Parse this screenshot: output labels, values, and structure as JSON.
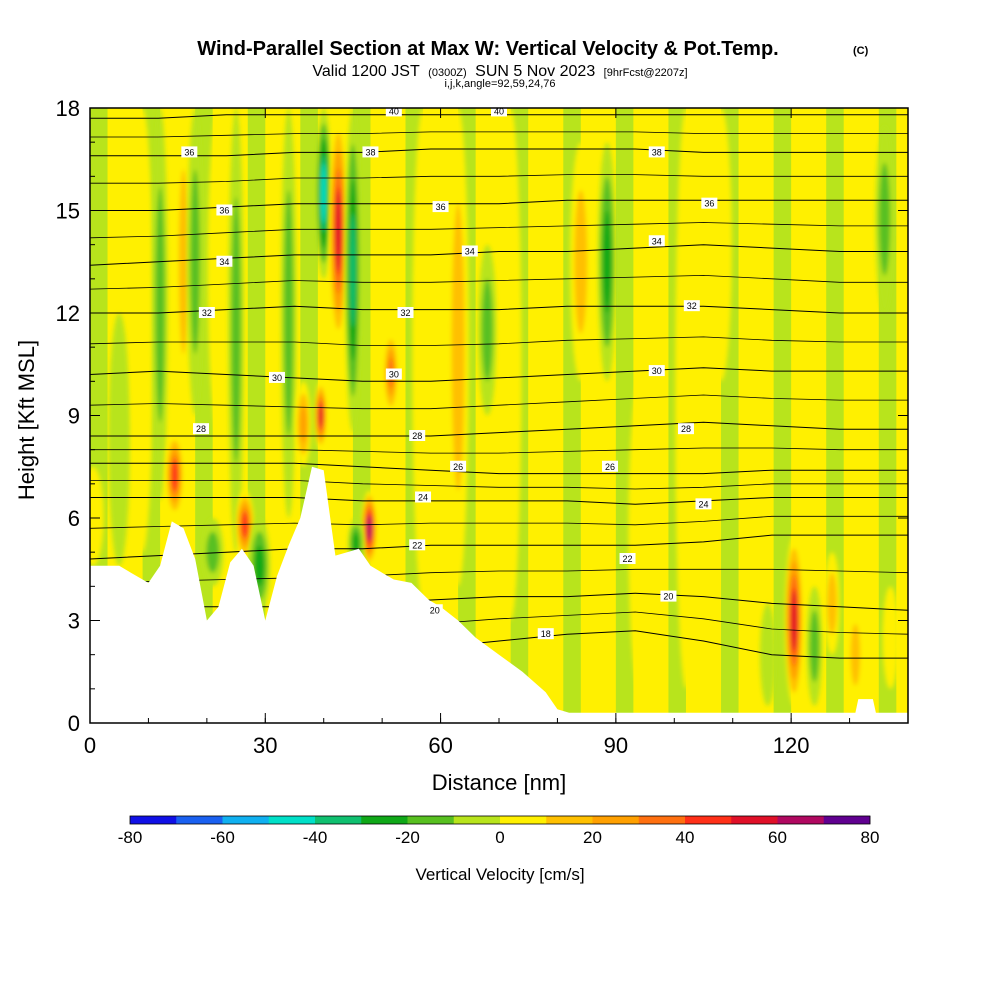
{
  "chart_data": {
    "type": "heatmap",
    "title": "Wind-Parallel Section at Max W: Vertical Velocity & Pot.Temp.",
    "title_mark": "(C)",
    "subtitle_parts": [
      "Valid 1200 JST",
      "(0300Z)",
      "SUN 5 Nov 2023",
      "[9hrFcst@2207z]"
    ],
    "subtitle2": "i,j,k,angle=92,59,24,76",
    "xlabel": "Distance [nm]",
    "ylabel": "Height [Kft MSL]",
    "xlim": [
      0,
      140
    ],
    "ylim": [
      0,
      18
    ],
    "x_ticks": [
      0,
      30,
      60,
      90,
      120
    ],
    "y_ticks": [
      0,
      3,
      6,
      9,
      12,
      15,
      18
    ],
    "colorbar": {
      "title": "Vertical Velocity [cm/s]",
      "levels": [
        -80,
        -70,
        -60,
        -50,
        -40,
        -30,
        -20,
        -10,
        0,
        10,
        20,
        30,
        40,
        50,
        60,
        70,
        80
      ],
      "tick_labels": [
        -80,
        -60,
        -40,
        -20,
        0,
        20,
        40,
        60,
        80
      ],
      "colors": [
        "#1010e6",
        "#1a60f0",
        "#10b0f0",
        "#00e0c8",
        "#10c070",
        "#10a818",
        "#58c020",
        "#b8e41c",
        "#fff000",
        "#ffc000",
        "#ffa000",
        "#ff7010",
        "#ff3018",
        "#e01028",
        "#b00860",
        "#600090"
      ]
    },
    "terrain_kft": [
      [
        0,
        4.6
      ],
      [
        5,
        4.6
      ],
      [
        7,
        4.4
      ],
      [
        10,
        4.1
      ],
      [
        12,
        4.6
      ],
      [
        14,
        5.9
      ],
      [
        16,
        5.7
      ],
      [
        18,
        4.8
      ],
      [
        20,
        3.0
      ],
      [
        22,
        3.4
      ],
      [
        24,
        4.7
      ],
      [
        26,
        5.1
      ],
      [
        28,
        4.6
      ],
      [
        30,
        3.0
      ],
      [
        32,
        4.3
      ],
      [
        34,
        5.2
      ],
      [
        36,
        6.0
      ],
      [
        38,
        7.5
      ],
      [
        40,
        7.4
      ],
      [
        42,
        4.9
      ],
      [
        44,
        5.0
      ],
      [
        46,
        5.1
      ],
      [
        48,
        4.6
      ],
      [
        50,
        4.4
      ],
      [
        52,
        4.2
      ],
      [
        55,
        4.1
      ],
      [
        58,
        3.6
      ],
      [
        60,
        3.4
      ],
      [
        63,
        3.0
      ],
      [
        66,
        2.5
      ],
      [
        70,
        2.0
      ],
      [
        74,
        1.5
      ],
      [
        78,
        0.9
      ],
      [
        80,
        0.4
      ],
      [
        82,
        0.3
      ],
      [
        131,
        0.3
      ],
      [
        131.5,
        0.7
      ],
      [
        134,
        0.7
      ],
      [
        134.5,
        0.3
      ],
      [
        140,
        0.3
      ]
    ],
    "isentrope_labels_K": [
      18,
      20,
      22,
      24,
      26,
      28,
      30,
      32,
      34,
      36,
      38,
      40
    ],
    "isentrope_base_kft": [
      {
        "theta": 18,
        "heights": [
          2.0,
          2.0,
          2.0,
          2.0,
          2.1,
          2.2,
          2.4,
          2.6,
          2.7,
          2.4,
          2.0,
          1.9,
          1.9
        ]
      },
      {
        "theta": 20,
        "heights": [
          3.4,
          3.4,
          3.4,
          3.4,
          3.5,
          3.6,
          3.7,
          3.7,
          3.8,
          3.7,
          3.5,
          3.4,
          3.3
        ]
      },
      {
        "theta": 22,
        "heights": [
          4.8,
          4.9,
          5.0,
          5.1,
          5.1,
          5.2,
          5.2,
          5.2,
          5.2,
          5.3,
          5.5,
          5.5,
          5.5
        ]
      },
      {
        "theta": 24,
        "heights": [
          6.6,
          6.6,
          6.6,
          6.6,
          6.5,
          6.5,
          6.5,
          6.5,
          6.4,
          6.5,
          6.6,
          6.6,
          6.6
        ]
      },
      {
        "theta": 26,
        "heights": [
          7.6,
          7.6,
          7.6,
          7.6,
          7.5,
          7.4,
          7.3,
          7.3,
          7.3,
          7.3,
          7.4,
          7.4,
          7.4
        ]
      },
      {
        "theta": 28,
        "heights": [
          8.4,
          8.4,
          8.4,
          8.4,
          8.4,
          8.4,
          8.5,
          8.6,
          8.7,
          8.8,
          8.7,
          8.6,
          8.6
        ]
      },
      {
        "theta": 30,
        "heights": [
          10.2,
          10.3,
          10.2,
          10.1,
          10.0,
          10.0,
          10.1,
          10.2,
          10.3,
          10.4,
          10.3,
          10.3,
          10.3
        ]
      },
      {
        "theta": 32,
        "heights": [
          12.0,
          12.0,
          12.1,
          12.2,
          12.1,
          12.1,
          12.1,
          12.2,
          12.2,
          12.2,
          12.1,
          12.0,
          12.0
        ]
      },
      {
        "theta": 34,
        "heights": [
          13.4,
          13.5,
          13.6,
          13.7,
          13.7,
          13.7,
          13.8,
          13.8,
          13.9,
          14.0,
          13.9,
          13.8,
          13.8
        ]
      },
      {
        "theta": 36,
        "heights": [
          15.0,
          15.0,
          15.1,
          15.2,
          15.2,
          15.2,
          15.2,
          15.3,
          15.3,
          15.3,
          15.3,
          15.3,
          15.3
        ]
      },
      {
        "theta": 38,
        "heights": [
          16.6,
          16.6,
          16.6,
          16.7,
          16.7,
          16.8,
          16.8,
          16.8,
          16.8,
          16.7,
          16.7,
          16.7,
          16.7
        ]
      },
      {
        "theta": 40,
        "heights": [
          17.7,
          17.7,
          17.8,
          17.8,
          17.8,
          17.8,
          17.8,
          17.8,
          17.8,
          17.8,
          17.8,
          17.8,
          17.8
        ]
      }
    ],
    "isentrope_label_marks": [
      {
        "text": "36",
        "x": 17,
        "y": 16.7
      },
      {
        "text": "36",
        "x": 23,
        "y": 15.0
      },
      {
        "text": "34",
        "x": 23,
        "y": 13.5
      },
      {
        "text": "32",
        "x": 20,
        "y": 12.0
      },
      {
        "text": "30",
        "x": 32,
        "y": 10.1
      },
      {
        "text": "28",
        "x": 19,
        "y": 8.6
      },
      {
        "text": "40",
        "x": 52,
        "y": 17.9
      },
      {
        "text": "40",
        "x": 70,
        "y": 17.9
      },
      {
        "text": "38",
        "x": 48,
        "y": 16.7
      },
      {
        "text": "38",
        "x": 97,
        "y": 16.7
      },
      {
        "text": "36",
        "x": 60,
        "y": 15.1
      },
      {
        "text": "36",
        "x": 106,
        "y": 15.2
      },
      {
        "text": "34",
        "x": 65,
        "y": 13.8
      },
      {
        "text": "34",
        "x": 97,
        "y": 14.1
      },
      {
        "text": "32",
        "x": 54,
        "y": 12.0
      },
      {
        "text": "32",
        "x": 103,
        "y": 12.2
      },
      {
        "text": "30",
        "x": 52,
        "y": 10.2
      },
      {
        "text": "30",
        "x": 97,
        "y": 10.3
      },
      {
        "text": "28",
        "x": 56,
        "y": 8.4
      },
      {
        "text": "28",
        "x": 102,
        "y": 8.6
      },
      {
        "text": "26",
        "x": 63,
        "y": 7.5
      },
      {
        "text": "26",
        "x": 89,
        "y": 7.5
      },
      {
        "text": "24",
        "x": 57,
        "y": 6.6
      },
      {
        "text": "24",
        "x": 105,
        "y": 6.4
      },
      {
        "text": "22",
        "x": 56,
        "y": 5.2
      },
      {
        "text": "22",
        "x": 92,
        "y": 4.8
      },
      {
        "text": "20",
        "x": 59,
        "y": 3.3
      },
      {
        "text": "20",
        "x": 99,
        "y": 3.7
      },
      {
        "text": "18",
        "x": 78,
        "y": 2.6
      }
    ],
    "vertical_velocity_features_cm_s": [
      {
        "x": 0.5,
        "bottom": 4.6,
        "top": 7.5,
        "width": 3,
        "w": 10
      },
      {
        "x": 5,
        "bottom": 4.6,
        "top": 12,
        "width": 3,
        "w": -10
      },
      {
        "x": 9,
        "bottom": 5.0,
        "top": 18,
        "width": 3,
        "w": 10
      },
      {
        "x": 12,
        "bottom": 6.5,
        "top": 18,
        "width": 2,
        "w": -20
      },
      {
        "x": 14.5,
        "bottom": 6.0,
        "top": 8.5,
        "width": 2.5,
        "w": 50
      },
      {
        "x": 16,
        "bottom": 9,
        "top": 18,
        "width": 2,
        "w": 20
      },
      {
        "x": 18,
        "bottom": 9,
        "top": 18,
        "width": 2,
        "w": -20
      },
      {
        "x": 21,
        "bottom": 4.0,
        "top": 6.0,
        "width": 3,
        "w": -20
      },
      {
        "x": 22,
        "bottom": 8.5,
        "top": 18,
        "width": 3,
        "w": 10
      },
      {
        "x": 25,
        "bottom": 5,
        "top": 18,
        "width": 2,
        "w": -20
      },
      {
        "x": 26.5,
        "bottom": 4.8,
        "top": 6.8,
        "width": 2.5,
        "w": 50
      },
      {
        "x": 29,
        "bottom": 3.2,
        "top": 6,
        "width": 3,
        "w": -30
      },
      {
        "x": 32,
        "bottom": 5,
        "top": 18,
        "width": 2,
        "w": 10
      },
      {
        "x": 34,
        "bottom": 6,
        "top": 18,
        "width": 2,
        "w": -20
      },
      {
        "x": 36.5,
        "bottom": 7.5,
        "top": 10,
        "width": 2,
        "w": 30
      },
      {
        "x": 39.5,
        "bottom": 8.0,
        "top": 10.0,
        "width": 1.5,
        "w": 60
      },
      {
        "x": 40,
        "bottom": 13,
        "top": 18,
        "width": 2,
        "w": -50
      },
      {
        "x": 42.5,
        "bottom": 11,
        "top": 17.8,
        "width": 2.5,
        "w": 60
      },
      {
        "x": 45,
        "bottom": 8.5,
        "top": 18,
        "width": 2,
        "w": -40
      },
      {
        "x": 47.8,
        "bottom": 4.6,
        "top": 6.8,
        "width": 2,
        "w": 70
      },
      {
        "x": 45.5,
        "bottom": 4.5,
        "top": 6,
        "width": 2,
        "w": -30
      },
      {
        "x": 51.5,
        "bottom": 9,
        "top": 11.5,
        "width": 2,
        "w": 40
      },
      {
        "x": 57,
        "bottom": 3.5,
        "top": 18,
        "width": 3,
        "w": 10
      },
      {
        "x": 63,
        "bottom": 4,
        "top": 18,
        "width": 3,
        "w": 20
      },
      {
        "x": 68,
        "bottom": 9,
        "top": 14,
        "width": 2.5,
        "w": -20
      },
      {
        "x": 72,
        "bottom": 3,
        "top": 18,
        "width": 3,
        "w": 10
      },
      {
        "x": 78,
        "bottom": 2,
        "top": 8,
        "width": 3,
        "w": 10
      },
      {
        "x": 84,
        "bottom": 10,
        "top": 17,
        "width": 3,
        "w": 20
      },
      {
        "x": 88.5,
        "bottom": 10,
        "top": 17,
        "width": 2.5,
        "w": -30
      },
      {
        "x": 94,
        "bottom": 1,
        "top": 10,
        "width": 3,
        "w": 10
      },
      {
        "x": 102,
        "bottom": 1,
        "top": 18,
        "width": 3,
        "w": 10
      },
      {
        "x": 108,
        "bottom": 10,
        "top": 18,
        "width": 3,
        "w": 10
      },
      {
        "x": 116,
        "bottom": 0.5,
        "top": 3.5,
        "width": 2,
        "w": -10
      },
      {
        "x": 120.5,
        "bottom": 0.5,
        "top": 5.5,
        "width": 2.5,
        "w": 60
      },
      {
        "x": 124,
        "bottom": 0.5,
        "top": 4,
        "width": 2,
        "w": -20
      },
      {
        "x": 127,
        "bottom": 2,
        "top": 5,
        "width": 2,
        "w": 20
      },
      {
        "x": 131,
        "bottom": 0.5,
        "top": 3.5,
        "width": 2,
        "w": 20
      },
      {
        "x": 136,
        "bottom": 12,
        "top": 17.5,
        "width": 2.5,
        "w": -20
      },
      {
        "x": 137,
        "bottom": 1,
        "top": 4,
        "width": 2,
        "w": 10
      }
    ]
  }
}
